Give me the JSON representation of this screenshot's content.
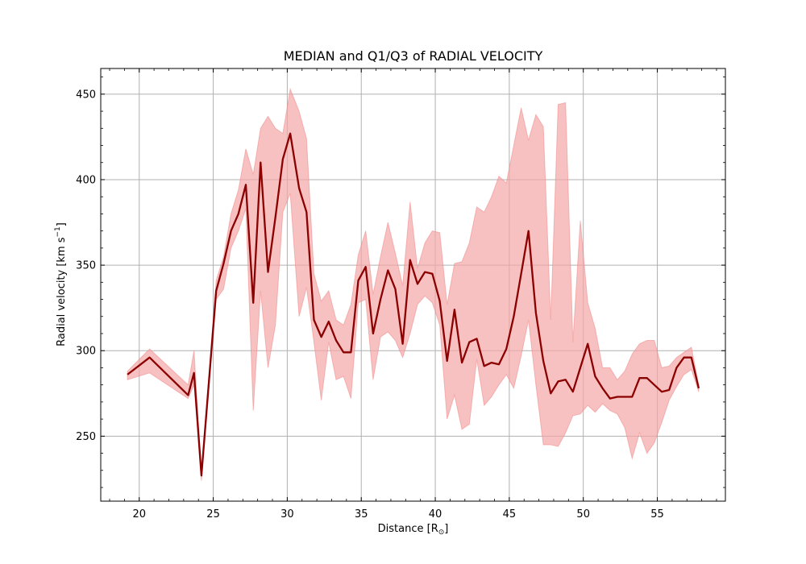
{
  "chart_data": {
    "type": "line",
    "title": "MEDIAN and Q1/Q3 of RADIAL VELOCITY",
    "xlabel": "Distance [R",
    "xlabel_sub": "⊙",
    "xlabel_end": "]",
    "ylabel": "Radial velocity [km s",
    "ylabel_sup": "−1",
    "ylabel_end": "]",
    "xlim": [
      17.4,
      59.6
    ],
    "ylim": [
      212,
      465
    ],
    "xticks": [
      20,
      25,
      30,
      35,
      40,
      45,
      50,
      55
    ],
    "yticks": [
      250,
      300,
      350,
      400,
      450
    ],
    "grid": true,
    "series": [
      {
        "role": "median",
        "color": "#8b0000",
        "x": [
          19.2,
          20.7,
          23.3,
          23.7,
          24.2,
          25.2,
          25.7,
          26.2,
          26.7,
          27.2,
          27.7,
          28.2,
          28.7,
          29.2,
          29.7,
          30.2,
          30.8,
          31.3,
          31.8,
          32.3,
          32.8,
          33.3,
          33.8,
          34.3,
          34.8,
          35.3,
          35.8,
          36.3,
          36.8,
          37.3,
          37.8,
          38.3,
          38.8,
          39.3,
          39.8,
          40.3,
          40.8,
          41.3,
          41.8,
          42.3,
          42.8,
          43.3,
          43.8,
          44.3,
          44.8,
          45.3,
          45.8,
          46.3,
          46.8,
          47.3,
          47.8,
          48.3,
          48.8,
          49.3,
          49.8,
          50.3,
          50.8,
          51.3,
          51.8,
          52.3,
          52.8,
          53.3,
          53.8,
          54.3,
          54.8,
          55.3,
          55.8,
          56.3,
          56.8,
          57.3,
          57.8
        ],
        "y": [
          286,
          296,
          274,
          287,
          227,
          335,
          351,
          370,
          380,
          397,
          328,
          410,
          346,
          378,
          412,
          427,
          395,
          381,
          318,
          308,
          317,
          306,
          299,
          299,
          341,
          349,
          310,
          330,
          347,
          336,
          304,
          353,
          339,
          346,
          345,
          329,
          294,
          324,
          293,
          305,
          307,
          291,
          293,
          292,
          301,
          320,
          345,
          370,
          322,
          294,
          275,
          282,
          283,
          276,
          290,
          304,
          285,
          278,
          272,
          273,
          273,
          273,
          284,
          284,
          280,
          276,
          277,
          290,
          296,
          296,
          278
        ]
      },
      {
        "role": "q1",
        "color": "#f4a6a6",
        "x": [
          19.2,
          20.7,
          23.3,
          23.7,
          24.2,
          25.2,
          25.7,
          26.2,
          26.7,
          27.2,
          27.7,
          28.2,
          28.7,
          29.2,
          29.7,
          30.2,
          30.8,
          31.3,
          31.8,
          32.3,
          32.8,
          33.3,
          33.8,
          34.3,
          34.8,
          35.3,
          35.8,
          36.3,
          36.8,
          37.3,
          37.8,
          38.3,
          38.8,
          39.3,
          39.8,
          40.3,
          40.8,
          41.3,
          41.8,
          42.3,
          42.8,
          43.3,
          43.8,
          44.3,
          44.8,
          45.3,
          45.8,
          46.3,
          46.8,
          47.3,
          47.8,
          48.3,
          48.8,
          49.3,
          49.8,
          50.3,
          50.8,
          51.3,
          51.8,
          52.3,
          52.8,
          53.3,
          53.8,
          54.3,
          54.8,
          55.3,
          55.8,
          56.3,
          56.8,
          57.3,
          57.8
        ],
        "y": [
          283,
          287,
          272,
          280,
          224,
          330,
          336,
          360,
          370,
          383,
          265,
          335,
          290,
          315,
          381,
          392,
          320,
          337,
          305,
          271,
          305,
          283,
          285,
          272,
          328,
          330,
          283,
          308,
          311,
          306,
          296,
          310,
          327,
          332,
          328,
          315,
          260,
          274,
          254,
          257,
          295,
          268,
          273,
          280,
          286,
          278,
          297,
          318,
          280,
          245,
          245,
          244,
          252,
          262,
          263,
          268,
          264,
          269,
          265,
          263,
          255,
          237,
          252,
          240,
          246,
          258,
          271,
          279,
          286,
          289,
          276
        ]
      },
      {
        "role": "q3",
        "color": "#f4a6a6",
        "x": [
          19.2,
          20.7,
          23.3,
          23.7,
          24.2,
          25.2,
          25.7,
          26.2,
          26.7,
          27.2,
          27.7,
          28.2,
          28.7,
          29.2,
          29.7,
          30.2,
          30.8,
          31.3,
          31.8,
          32.3,
          32.8,
          33.3,
          33.8,
          34.3,
          34.8,
          35.3,
          35.8,
          36.3,
          36.8,
          37.3,
          37.8,
          38.3,
          38.8,
          39.3,
          39.8,
          40.3,
          40.8,
          41.3,
          41.8,
          42.3,
          42.8,
          43.3,
          43.8,
          44.3,
          44.8,
          45.3,
          45.8,
          46.3,
          46.8,
          47.3,
          47.8,
          48.3,
          48.8,
          49.3,
          49.8,
          50.3,
          50.8,
          51.3,
          51.8,
          52.3,
          52.8,
          53.3,
          53.8,
          54.3,
          54.8,
          55.3,
          55.8,
          56.3,
          56.8,
          57.3,
          57.8
        ],
        "y": [
          288,
          301,
          280,
          300,
          229,
          341,
          355,
          380,
          394,
          418,
          403,
          430,
          437,
          430,
          427,
          453,
          440,
          424,
          345,
          329,
          335,
          318,
          315,
          327,
          356,
          370,
          333,
          355,
          375,
          357,
          338,
          387,
          348,
          363,
          370,
          369,
          327,
          351,
          352,
          363,
          384,
          381,
          390,
          402,
          398,
          420,
          442,
          423,
          438,
          431,
          318,
          444,
          445,
          305,
          376,
          328,
          313,
          290,
          290,
          283,
          288,
          298,
          304,
          306,
          306,
          290,
          291,
          296,
          299,
          302,
          280
        ]
      }
    ]
  }
}
